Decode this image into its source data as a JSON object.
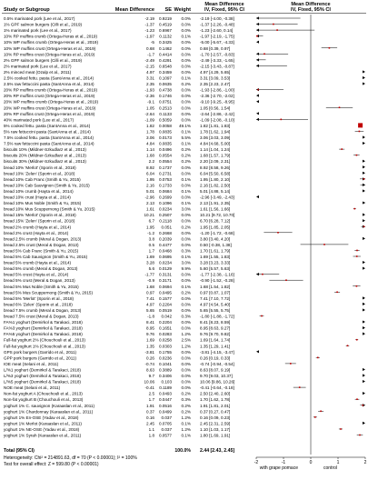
{
  "chart_data": {
    "type": "forest",
    "headers": {
      "study": "Study or Subgroup",
      "md": "Mean Difference",
      "se": "SE",
      "weight": "Weight",
      "ci": "Mean Difference",
      "ci_sub": "IV, Fixed, 95% CI",
      "plot_title": "Mean Difference",
      "plot_sub": "IV, Fixed, 95% CI"
    },
    "rows": [
      {
        "study": "0.5% marinated pork (Lee et al., 2017)",
        "md": "-2.19",
        "se": "0.9219",
        "w": "0.0%",
        "ci": "-2.19 [-4.00, -0.38]",
        "est": -2.19,
        "lo": -4.0,
        "hi": -0.38
      },
      {
        "study": "1% GPF salmon burgers (Cilli et al., 2019)",
        "md": "-1.37",
        "se": "0.4519",
        "w": "0.0%",
        "ci": "-1.37 [-2.26, -0.48]",
        "est": -1.37,
        "lo": -2.26,
        "hi": -0.48
      },
      {
        "study": "1% marinated pork (Lee et al., 2017)",
        "md": "-1.23",
        "se": "0.6967",
        "w": "0.0%",
        "ci": "-1.23 [-2.60, 0.14]",
        "est": -1.23,
        "lo": -2.6,
        "hi": 0.14
      },
      {
        "study": "10% RP muffins crumb (Ortega-Heras et al., 2019)",
        "md": "-1.97",
        "se": "0.1132",
        "w": "0.1%",
        "ci": "-1.97 [-2.19, -1.75]",
        "est": -1.97,
        "lo": -2.19,
        "hi": -1.75
      },
      {
        "study": "10% WP muffins crumb (Ortega-Heras et al., 2019)",
        "md": "-5",
        "se": "0.3425",
        "w": "0.0%",
        "ci": "-5.00 [-5.67, -4.33]",
        "est": -5.0,
        "lo": -5.67,
        "hi": -4.33
      },
      {
        "study": "10% WP muffins crust (Ortega-Heras et al., 2019)",
        "md": "0.68",
        "se": "0.1462",
        "w": "0.0%",
        "ci": "0.68 [0.39, 0.97]",
        "est": 0.68,
        "lo": 0.39,
        "hi": 0.97
      },
      {
        "study": "10% RP muffins crust (Ortega-Heras et al., 2019)",
        "md": "-1.7",
        "se": "0.4414",
        "w": "0.0%",
        "ci": "-1.70 [-2.57, -0.83]",
        "est": -1.7,
        "lo": -2.57,
        "hi": -0.83
      },
      {
        "study": "2% GPF salmon burgers (Cilli et al., 2019)",
        "md": "-2.49",
        "se": "0.4291",
        "w": "0.0%",
        "ci": "-2.49 [-3.33, -1.65]",
        "est": -2.49,
        "lo": -3.33,
        "hi": -1.65
      },
      {
        "study": "2% marinated pork (Lee et al., 2017)",
        "md": "-2.15",
        "se": "0.6548",
        "w": "0.0%",
        "ci": "-2.15 [-3.43, -0.87]",
        "est": -2.15,
        "lo": -3.43,
        "hi": -0.87
      },
      {
        "study": "2% minced meat (Ozalp et al., 2011)",
        "md": "4.97",
        "se": "0.3459",
        "w": "0.0%",
        "ci": "4.97 [4.29, 5.65]",
        "est": 4.97,
        "lo": 4.29,
        "hi": 5.65
      },
      {
        "study": "2.5% cooked fettu. pasta (SantAnna et al., 2014)",
        "md": "3.31",
        "se": "0.1097",
        "w": "0.1%",
        "ci": "3.31 [3.09, 3.53]",
        "est": 3.31,
        "lo": 3.09,
        "hi": 3.53
      },
      {
        "study": "2.5% raw fettuccini pasta (SantAnna et al., 2014)",
        "md": "2.35",
        "se": "0.0635",
        "w": "0.2%",
        "ci": "2.35 [2.23, 2.47]",
        "est": 2.35,
        "lo": 2.23,
        "hi": 2.47
      },
      {
        "study": "20% RP muffins crumb (Ortega-Heras et al., 2019)",
        "md": "-1.93",
        "se": "0.4738",
        "w": "0.0%",
        "ci": "-1.93 [-2.86, -1.00]",
        "est": -1.93,
        "lo": -2.86,
        "hi": -1.0
      },
      {
        "study": "20% RP muffins crust (Ortega-Heras et al., 2019)",
        "md": "-2.36",
        "se": "0.1746",
        "w": "0.0%",
        "ci": "-2.36 [-2.70, -2.02]",
        "est": -2.36,
        "lo": -2.7,
        "hi": -2.02
      },
      {
        "study": "20% WP muffins crumb (Ortega-Heras et al., 2019)",
        "md": "-9.1",
        "se": "0.0751",
        "w": "0.0%",
        "ci": "-9.10 [-9.25, -8.95]",
        "est": -9.1,
        "lo": -9.25,
        "hi": -8.95
      },
      {
        "study": "20% WP muffins crust (Ortega-Heras et al., 2019)",
        "md": "1.05",
        "se": "0.2513",
        "w": "0.0%",
        "ci": "1.05 [0.56, 1.54]",
        "est": 1.05,
        "lo": 0.56,
        "hi": 1.54
      },
      {
        "study": "20% RP muffins crust (Ortega-Heras et al., 2019)",
        "md": "-2.64",
        "se": "0.1133",
        "w": "0.0%",
        "ci": "-2.64 [-2.86, -2.42]",
        "est": -2.64,
        "lo": -2.86,
        "hi": -2.42
      },
      {
        "study": "40% marinated pork (Lee et al., 2017)",
        "md": "-1.09",
        "se": "0.5059",
        "w": "0.0%",
        "ci": "-1.09 [-2.08, -0.10]",
        "est": -1.09,
        "lo": -2.08,
        "hi": -0.1
      },
      {
        "study": "5% cooked fettu. pasta (SantAnna et al., 2014)",
        "md": "1.82",
        "se": "0.0058",
        "w": "49.1%",
        "ci": "1.82 [1.81, 1.83]",
        "est": 1.82,
        "lo": 1.81,
        "hi": 1.83,
        "big": true
      },
      {
        "study": "5% raw fettuccini pasta (SantAnna et al., 2014)",
        "md": "1.78",
        "se": "0.0835",
        "w": "0.1%",
        "ci": "1.78 [1.62, 1.94]",
        "est": 1.78,
        "lo": 1.62,
        "hi": 1.94
      },
      {
        "study": "7.5% cooked fettu. pasta (SantAnna et al., 2014)",
        "md": "3.06",
        "se": "0.0173",
        "w": "5.5%",
        "ci": "3.06 [3.03, 3.09]",
        "est": 3.06,
        "lo": 3.03,
        "hi": 3.09
      },
      {
        "study": "7.5% raw fettuccini pasta (SantAnna et al., 2014)",
        "md": "4.84",
        "se": "0.0835",
        "w": "0.1%",
        "ci": "4.84 [4.68, 5.00]",
        "est": 4.84,
        "lo": 4.68,
        "hi": 5.0
      },
      {
        "study": "biscuits 10% (Mildner-Szkudlarz et al., 2013)",
        "md": "1.14",
        "se": "0.0496",
        "w": "0.2%",
        "ci": "1.14 [1.04, 1.24]",
        "est": 1.14,
        "lo": 1.04,
        "hi": 1.24
      },
      {
        "study": "biscuits 20% (Mildner-Szkudlarz et al., 2013)",
        "md": "1.68",
        "se": "0.0554",
        "w": "0.2%",
        "ci": "1.68 [1.57, 1.79]",
        "est": 1.68,
        "lo": 1.57,
        "hi": 1.79
      },
      {
        "study": "biscuits 30% (Mildner-Szkudlarz et al., 2013)",
        "md": "2.2",
        "se": "0.0554",
        "w": "0.2%",
        "ci": "2.20 [2.09, 2.31]",
        "est": 2.2,
        "lo": 2.09,
        "hi": 2.31
      },
      {
        "study": "bread 10% 'Merlot' (Sporin et al., 2018)",
        "md": "8.92",
        "se": "0.1737",
        "w": "0.0%",
        "ci": "8.92 [8.58, 9.26]",
        "est": 8.92,
        "lo": 8.58,
        "hi": 9.26
      },
      {
        "study": "bread 10% 'Zelen' (Sporin et al., 2018)",
        "md": "6.04",
        "se": "0.2731",
        "w": "0.0%",
        "ci": "6.04 [5.50, 6.58]",
        "est": 6.04,
        "lo": 5.5,
        "hi": 6.58
      },
      {
        "study": "bread 10% Cab Franc (Smith & Yu, 2015)",
        "md": "1.95",
        "se": "0.0753",
        "w": "0.1%",
        "ci": "1.95 [1.80, 2.10]",
        "est": 1.95,
        "lo": 1.8,
        "hi": 2.1
      },
      {
        "study": "bread 10% Cab Sauvignon (Smith & Yu, 2015)",
        "md": "2.16",
        "se": "0.1733",
        "w": "0.0%",
        "ci": "2.16 [1.82, 2.50]",
        "est": 2.16,
        "lo": 1.82,
        "hi": 2.5
      },
      {
        "study": "bread 10% crumb (Hayta et al., 2014)",
        "md": "5.01",
        "se": "0.0684",
        "w": "0.1%",
        "ci": "5.01 [4.88, 5.14]",
        "est": 5.01,
        "lo": 4.88,
        "hi": 5.14
      },
      {
        "study": "bread 10% crust (Hayta et al., 2014)",
        "md": "-2.96",
        "se": "0.2699",
        "w": "0.0%",
        "ci": "-2.96 [-3.49, -2.43]",
        "est": -2.96,
        "lo": -3.49,
        "hi": -2.43
      },
      {
        "study": "bread 10% Mus Noble (Smith & Yu, 2015)",
        "md": "2.13",
        "se": "0.1096",
        "w": "0.1%",
        "ci": "2.13 [1.91, 2.35]",
        "est": 2.13,
        "lo": 1.91,
        "hi": 2.35
      },
      {
        "study": "bread 10% Mus Scuppernong (Smith & Yu, 2015)",
        "md": "1.61",
        "se": "0.0234",
        "w": "3.0%",
        "ci": "1.61 [1.56, 1.66]",
        "est": 1.61,
        "lo": 1.56,
        "hi": 1.66
      },
      {
        "study": "bread 15% 'Merlot' (Sporin et al., 2018)",
        "md": "10.21",
        "se": "0.2507",
        "w": "0.0%",
        "ci": "10.21 [9.72, 10.70]",
        "est": 10.21,
        "lo": 9.72,
        "hi": 10.7
      },
      {
        "study": "bread 15% 'Zelen' (Sporin et al., 2018)",
        "md": "6.7",
        "se": "0.2118",
        "w": "0.0%",
        "ci": "6.70 [6.28, 7.12]",
        "est": 6.7,
        "lo": 6.28,
        "hi": 7.12
      },
      {
        "study": "bread 2% crumb (Hayta et al., 2014)",
        "md": "1.95",
        "se": "0.051",
        "w": "0.2%",
        "ci": "1.95 [1.85, 2.05]",
        "est": 1.95,
        "lo": 1.85,
        "hi": 2.05
      },
      {
        "study": "bread 2% crust (Hayta et al., 2014)",
        "md": "-1.2",
        "se": "0.2668",
        "w": "0.0%",
        "ci": "-1.20 [-1.72, -0.68]",
        "est": -1.2,
        "lo": -1.72,
        "hi": -0.68
      },
      {
        "study": "bread 2.5% crumb (Meral & Dogan, 2013)",
        "md": "3.8",
        "se": "0.2039",
        "w": "0.0%",
        "ci": "3.80 [3.40, 4.20]",
        "est": 3.8,
        "lo": 3.4,
        "hi": 4.2
      },
      {
        "study": "bread 2.5% crust (Meral & Dogan, 2013)",
        "md": "0.5",
        "se": "0.4477",
        "w": "0.0%",
        "ci": "0.50 [-0.38, 1.38]",
        "est": 0.5,
        "lo": -0.38,
        "hi": 1.38
      },
      {
        "study": "bread 5% Cab Franc (Smith & Yu, 2015)",
        "md": "1.7",
        "se": "0.0468",
        "w": "0.3%",
        "ci": "1.70 [1.61, 1.79]",
        "est": 1.7,
        "lo": 1.61,
        "hi": 1.79
      },
      {
        "study": "bread 5% Cab Sauvignon (Smith & Yu, 2015)",
        "md": "1.69",
        "se": "0.0695",
        "w": "0.1%",
        "ci": "1.69 [1.55, 1.83]",
        "est": 1.69,
        "lo": 1.55,
        "hi": 1.83
      },
      {
        "study": "bread 5% crumb (Hayta et al., 2014)",
        "md": "3.28",
        "se": "0.0234",
        "w": "3.0%",
        "ci": "3.28 [3.23, 3.33]",
        "est": 3.28,
        "lo": 3.23,
        "hi": 3.33
      },
      {
        "study": "bread 5% crumb (Meral & Dogan, 2013)",
        "md": "5.6",
        "se": "0.0129",
        "w": "9.9%",
        "ci": "5.60 [5.57, 5.63]",
        "est": 5.6,
        "lo": 5.57,
        "hi": 5.63
      },
      {
        "study": "bread 5% crust (Hayta et al., 2014)",
        "md": "-1.77",
        "se": "0.3131",
        "w": "0.0%",
        "ci": "-1.77 [-2.38, -1.16]",
        "est": -1.77,
        "lo": -2.38,
        "hi": -1.16
      },
      {
        "study": "bread 5% crust (Meral & Dogan, 2013)",
        "md": "-0.9",
        "se": "0.3171",
        "w": "0.0%",
        "ci": "-0.90 [-1.52, -0.28]",
        "est": -0.9,
        "lo": -1.52,
        "hi": -0.28
      },
      {
        "study": "bread 5% Mus Noble (Smith & Yu, 2015)",
        "md": "1.68",
        "se": "0.0694",
        "w": "0.1%",
        "ci": "1.68 [1.54, 1.82]",
        "est": 1.68,
        "lo": 1.54,
        "hi": 1.82
      },
      {
        "study": "bread 5% Mus Scuppernong (Smith & Yu, 2015)",
        "md": "0.97",
        "se": "0.0495",
        "w": "0.2%",
        "ci": "0.97 [0.87, 1.07]",
        "est": 0.97,
        "lo": 0.87,
        "hi": 1.07
      },
      {
        "study": "bread 5% 'Merlot' (Sporin et al., 2018)",
        "md": "7.41",
        "se": "0.1577",
        "w": "0.0%",
        "ci": "7.41 [7.10, 7.72]",
        "est": 7.41,
        "lo": 7.1,
        "hi": 7.72
      },
      {
        "study": "bread 6% 'Zelen' (Sporin et al., 2018)",
        "md": "4.97",
        "se": "0.2204",
        "w": "0.0%",
        "ci": "4.97 [4.54, 5.40]",
        "est": 4.97,
        "lo": 4.54,
        "hi": 5.4
      },
      {
        "study": "bread 7.5% crumb (Meral & Dogan, 2013)",
        "md": "5.65",
        "se": "0.0519",
        "w": "0.0%",
        "ci": "5.65 [5.55, 5.75]",
        "est": 5.65,
        "lo": 5.55,
        "hi": 5.75
      },
      {
        "study": "bread 7.5% crust (Meral & Dogan, 2013)",
        "md": "-1.8",
        "se": "0.042",
        "w": "0.3%",
        "ci": "-1.80 [-1.88, -1.72]",
        "est": -1.8,
        "lo": -1.88,
        "hi": -1.72
      },
      {
        "study": "FA%1 yoghurt (Demirkol & Tarakaci, 2018)",
        "md": "8.41",
        "se": "0.2204",
        "w": "0.0%",
        "ci": "8.41 [8.23, 8.59]",
        "est": 8.41,
        "lo": 8.23,
        "hi": 8.59
      },
      {
        "study": "FA%3 yoghurt (Demirkol & Tarakaci, 2018)",
        "md": "8.95",
        "se": "0.1651",
        "w": "0.0%",
        "ci": "8.95 [8.63, 9.27]",
        "est": 8.95,
        "lo": 8.63,
        "hi": 9.27
      },
      {
        "study": "FA%5 yoghurt (Demirkol & Tarakaci, 2018)",
        "md": "9.76",
        "se": "0.0283",
        "w": "1.2%",
        "ci": "9.76 [9.70, 9.82]",
        "est": 9.76,
        "lo": 9.7,
        "hi": 9.82
      },
      {
        "study": "Full-fat yoghurt 2% (Chouchouli et al., 2013)",
        "md": "1.69",
        "se": "0.0258",
        "w": "2.5%",
        "ci": "1.69 [1.64, 1.74]",
        "est": 1.69,
        "lo": 1.64,
        "hi": 1.74
      },
      {
        "study": "Full-fat yoghurt 1% (Chouchouli et al., 2013)",
        "md": "1.35",
        "se": "0.0303",
        "w": "1.2%",
        "ci": "1.35 [1.29, 1.41]",
        "est": 1.35,
        "lo": 1.29,
        "hi": 1.41
      },
      {
        "study": "GPS pork burgers (Garrido et al., 2011)",
        "md": "-3.81",
        "se": "0.1755",
        "w": "0.0%",
        "ci": "-3.81 [-4.15, -3.47]",
        "est": -3.81,
        "lo": -4.15,
        "hi": -3.47
      },
      {
        "study": "GPP pork burgers (Garrido et al., 2011)",
        "md": "0.26",
        "se": "0.0236",
        "w": "0.0%",
        "ci": "0.26 [0.19, 0.33]",
        "est": 0.26,
        "lo": 0.19,
        "hi": 0.33
      },
      {
        "study": "IOE meat (Selani et al., 2011)",
        "md": "-0.74",
        "se": "0.1041",
        "w": "0.0%",
        "ci": "-0.74 [-0.94, -0.54]",
        "est": -0.74,
        "lo": -0.94,
        "hi": -0.54
      },
      {
        "study": "L/%1 yoghurt (Demirkol & Tarakaci, 2018)",
        "md": "8.63",
        "se": "0.3889",
        "w": "0.0%",
        "ci": "8.63 [8.07, 9.19]",
        "est": 8.63,
        "lo": 8.07,
        "hi": 9.19
      },
      {
        "study": "L/%3 yoghurt (Demirkol & Tarakaci, 2018)",
        "md": "9.7",
        "se": "0.3406",
        "w": "0.0%",
        "ci": "9.70 [9.03, 10.37]",
        "est": 9.7,
        "lo": 9.03,
        "hi": 10.37
      },
      {
        "study": "L/%5 yoghurt (Demirkol & Tarakaci, 2018)",
        "md": "10.06",
        "se": "0.103",
        "w": "0.0%",
        "ci": "10.06 [9.86, 10.26]",
        "est": 10.06,
        "lo": 9.86,
        "hi": 10.26
      },
      {
        "study": "NOE meat (Selani et al., 2011)",
        "md": "-0.41",
        "se": "0.1189",
        "w": "0.0%",
        "ci": "-0.41 [-0.64, -0.18]",
        "est": -0.41,
        "lo": -0.64,
        "hi": -0.18
      },
      {
        "study": "Non-fat yoghurt A (Chouchouli et al., 2013)",
        "md": "2.5",
        "se": "0.0493",
        "w": "0.2%",
        "ci": "2.50 [2.40, 2.60]",
        "est": 2.5,
        "lo": 2.4,
        "hi": 2.6
      },
      {
        "study": "Non-fat yoghurt B (Chouchouli et al., 2013)",
        "md": "1.7",
        "se": "0.0447",
        "w": "0.3%",
        "ci": "1.70 [1.62, 1.78]",
        "est": 1.7,
        "lo": 1.62,
        "hi": 1.78
      },
      {
        "study": "yoghurt 1% C. sauvignon (Karaaslan et al., 2011)",
        "md": "1.91",
        "se": "0.0516",
        "w": "0.2%",
        "ci": "1.91 [1.81, 2.01]",
        "est": 1.91,
        "lo": 1.81,
        "hi": 2.01
      },
      {
        "study": "yoghurt 1% Chardonnay (Karaaslan et al., 2011)",
        "md": "0.37",
        "se": "0.0499",
        "w": "0.2%",
        "ci": "0.37 [0.27, 0.47]",
        "est": 0.37,
        "lo": 0.27,
        "hi": 0.47
      },
      {
        "study": "yoghurt 1% En-OSE (Yadav et al., 2018)",
        "md": "0.16",
        "se": "0.037",
        "w": "1.2%",
        "ci": "0.16 [0.09, 0.23]",
        "est": 0.16,
        "lo": 0.09,
        "hi": 0.23
      },
      {
        "study": "yoghurt 1% Merlot (Karaaslan et al., 2011)",
        "md": "2.45",
        "se": "0.0705",
        "w": "0.1%",
        "ci": "2.45 [2.31, 2.59]",
        "est": 2.45,
        "lo": 2.31,
        "hi": 2.59
      },
      {
        "study": "yoghurt 1% NE-OSE (Yadav et al., 2018)",
        "md": "1.1",
        "se": "0.037",
        "w": "1.2%",
        "ci": "1.10 [1.03, 1.17]",
        "est": 1.1,
        "lo": 1.03,
        "hi": 1.17
      },
      {
        "study": "yoghurt 1% Syrah (Karaaslan et al., 2011)",
        "md": "1.8",
        "se": "0.0577",
        "w": "0.1%",
        "ci": "1.80 [1.69, 1.91]",
        "est": 1.8,
        "lo": 1.69,
        "hi": 1.91
      }
    ],
    "total": {
      "study": "Total (95% CI)",
      "w": "100.0%",
      "ci": "2.44 [2.43, 2.45]",
      "est": 2.44,
      "lo": 2.43,
      "hi": 2.45
    },
    "heterogeneity": "Heterogeneity: Chi² = 214891.63, df = 70 (P < 0.00001); I² = 100%",
    "overall_effect": "Test for overall effect: Z = 599.80 (P < 0.00001)",
    "xaxis": {
      "min": -2,
      "max": 2,
      "ticks": [
        -2,
        -1,
        0,
        1,
        2
      ],
      "tick_labels": [
        "-2",
        "-1",
        "0",
        "1",
        "2"
      ]
    },
    "axis_labels": {
      "left": "with grape pomace",
      "right": "control"
    },
    "colors": {
      "square": "#c00000",
      "diamond": "#000000",
      "line": "#000000"
    }
  }
}
